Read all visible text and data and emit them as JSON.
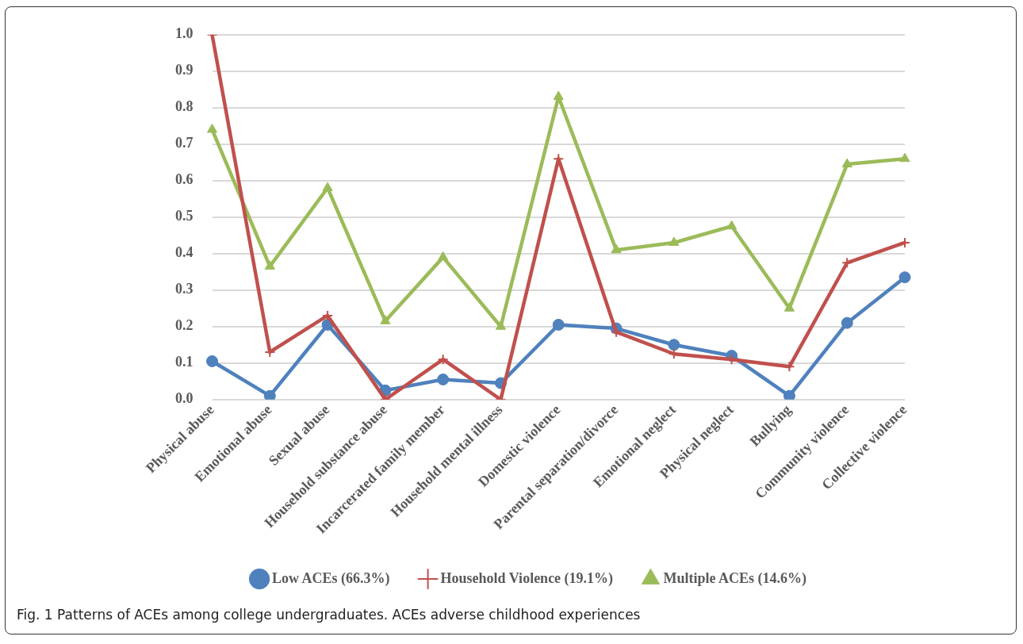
{
  "chart_data": {
    "type": "line",
    "categories": [
      "Physical abuse",
      "Emotional abuse",
      "Sexual abuse",
      "Household substance abuse",
      "Incarcerated family member",
      "Household mental illness",
      "Domestic violence",
      "Parental separation/divorce",
      "Emotional neglect",
      "Physical neglect",
      "Bullying",
      "Community violence",
      "Collective violence"
    ],
    "series": [
      {
        "name": "Low ACEs (66.3%)",
        "color": "#4f81bd",
        "marker": "circle",
        "values": [
          0.105,
          0.01,
          0.205,
          0.025,
          0.055,
          0.045,
          0.205,
          0.195,
          0.15,
          0.12,
          0.01,
          0.21,
          0.335
        ]
      },
      {
        "name": "Household Violence (19.1%)",
        "color": "#c0504d",
        "marker": "cross",
        "values": [
          1.0,
          0.13,
          0.23,
          0.0,
          0.11,
          0.0,
          0.66,
          0.185,
          0.125,
          0.11,
          0.09,
          0.375,
          0.43
        ]
      },
      {
        "name": "Multiple ACEs (14.6%)",
        "color": "#9bbb59",
        "marker": "triangle",
        "values": [
          0.74,
          0.365,
          0.58,
          0.215,
          0.39,
          0.2,
          0.83,
          0.41,
          0.43,
          0.475,
          0.25,
          0.645,
          0.66
        ]
      }
    ],
    "ylim": [
      0,
      1
    ],
    "yticks": [
      {
        "value": 0,
        "label": "0.0"
      },
      {
        "value": 0.1,
        "label": "0.1"
      },
      {
        "value": 0.2,
        "label": "0.2"
      },
      {
        "value": 0.3,
        "label": "0.3"
      },
      {
        "value": 0.4,
        "label": "0.4"
      },
      {
        "value": 0.5,
        "label": "0.5"
      },
      {
        "value": 0.6,
        "label": "0.6"
      },
      {
        "value": 0.7,
        "label": "0.7"
      },
      {
        "value": 0.8,
        "label": "0.8"
      },
      {
        "value": 0.9,
        "label": "0.9"
      },
      {
        "value": 1,
        "label": "1.0"
      }
    ],
    "grid": "y",
    "legend": "bottom",
    "line_style": "solid",
    "annotations": [
      "Fig. 1 Patterns of ACEs among college undergraduates. ACEs adverse childhood experiences"
    ]
  }
}
